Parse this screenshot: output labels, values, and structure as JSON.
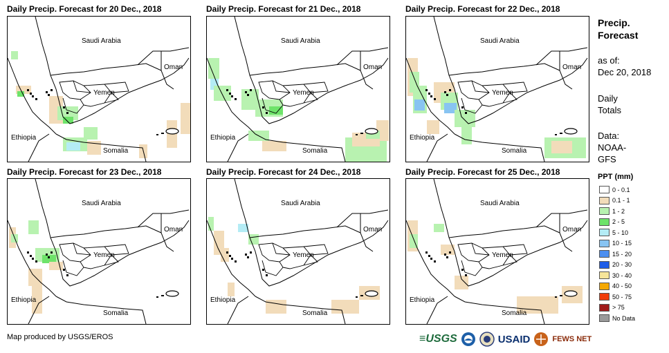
{
  "panels": [
    {
      "title": "Daily Precip. Forecast for 20 Dec., 2018",
      "day": 0
    },
    {
      "title": "Daily Precip. Forecast for 21 Dec., 2018",
      "day": 1
    },
    {
      "title": "Daily Precip. Forecast for 22 Dec., 2018",
      "day": 2
    },
    {
      "title": "Daily Precip. Forecast for 23 Dec., 2018",
      "day": 3
    },
    {
      "title": "Daily Precip. Forecast for 24 Dec., 2018",
      "day": 4
    },
    {
      "title": "Daily Precip. Forecast for 25 Dec., 2018",
      "day": 5
    }
  ],
  "map_labels": {
    "saudi": "Saudi Arabia",
    "oman": "Oman",
    "yemen": "Yemen",
    "ethiopia": "Ethiopia",
    "somalia": "Somalia"
  },
  "sidebar": {
    "title_line1": "Precip.",
    "title_line2": "Forecast",
    "asof_label": "as of:",
    "asof_date": "Dec 20, 2018",
    "daily_line1": "Daily",
    "daily_line2": "Totals",
    "data_label": "Data:",
    "data_src1": "NOAA-",
    "data_src2": "GFS"
  },
  "legend": {
    "title": "PPT (mm)",
    "items": [
      {
        "label": "0 - 0.1",
        "color": "#ffffff"
      },
      {
        "label": "0.1 - 1",
        "color": "#f2dcba"
      },
      {
        "label": "1 - 2",
        "color": "#b8f2b0"
      },
      {
        "label": "2 - 5",
        "color": "#6ee36a"
      },
      {
        "label": "5 - 10",
        "color": "#b4ecf5"
      },
      {
        "label": "10 - 15",
        "color": "#88c4f2"
      },
      {
        "label": "15 - 20",
        "color": "#4d8ff0"
      },
      {
        "label": "20 - 30",
        "color": "#1f5de8"
      },
      {
        "label": "30 - 40",
        "color": "#f7e59a"
      },
      {
        "label": "40 - 50",
        "color": "#f5a800"
      },
      {
        "label": "50 - 75",
        "color": "#f03c0a"
      },
      {
        "label": "> 75",
        "color": "#a01a1a"
      },
      {
        "label": "No Data",
        "color": "#9a9a9a"
      }
    ]
  },
  "footer": {
    "credit": "Map produced by USGS/EROS"
  },
  "logos": {
    "usgs": "USGS",
    "usaid": "USAID",
    "fews": "FEWS NET"
  }
}
